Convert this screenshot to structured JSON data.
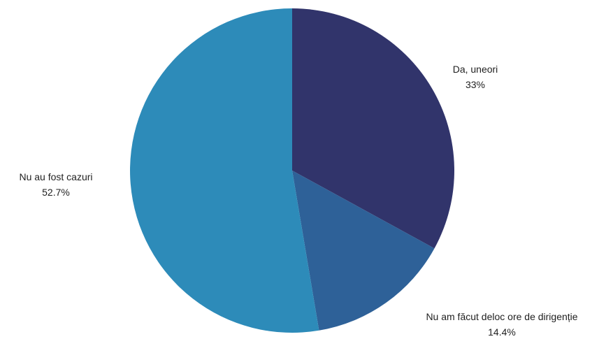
{
  "chart_data": {
    "type": "pie",
    "title": "",
    "slices": [
      {
        "label": "Da, uneori",
        "value_label": "33%",
        "value": 33.0,
        "color": "#31346b"
      },
      {
        "label": "Nu am făcut deloc ore de dirigenție",
        "value_label": "14.4%",
        "value": 14.4,
        "color": "#2e6198"
      },
      {
        "label": "Nu au fost cazuri",
        "value_label": "52.7%",
        "value": 52.7,
        "color": "#2d8bb9"
      }
    ],
    "start_angle": "12 o'clock",
    "direction": "clockwise",
    "legend": "none",
    "data_labels": "outside"
  }
}
